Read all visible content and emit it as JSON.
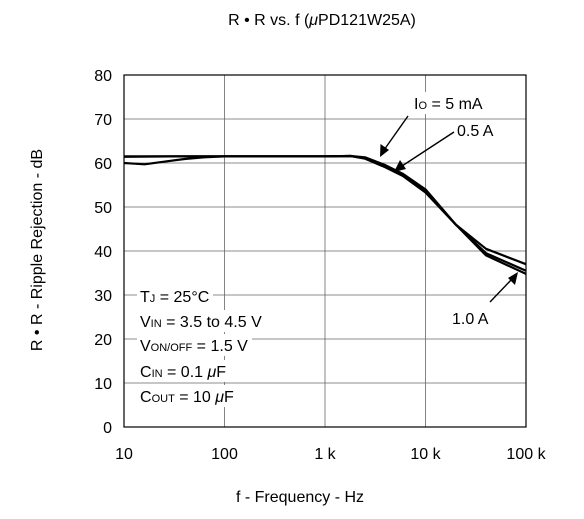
{
  "chart_data": {
    "type": "line",
    "title_prefix": "R • R vs. f (",
    "title_mu": "μ",
    "title_suffix": "PD121W25A)",
    "xlabel": "f - Frequency - Hz",
    "ylabel": "R • R - Ripple Rejection - dB",
    "x_scale": "log",
    "xlim": [
      10,
      100000
    ],
    "ylim": [
      0,
      80
    ],
    "x_ticks": [
      10,
      100,
      1000,
      10000,
      100000
    ],
    "x_tick_labels": [
      "10",
      "100",
      "1 k",
      "10 k",
      "100 k"
    ],
    "y_ticks": [
      0,
      10,
      20,
      30,
      40,
      50,
      60,
      70,
      80
    ],
    "y_tick_labels": [
      "0",
      "10",
      "20",
      "30",
      "40",
      "50",
      "60",
      "70",
      "80"
    ],
    "grid": true,
    "series": [
      {
        "name": "IO = 5 mA",
        "points": [
          [
            10,
            60.0
          ],
          [
            16,
            59.7
          ],
          [
            25,
            60.3
          ],
          [
            40,
            60.9
          ],
          [
            63,
            61.3
          ],
          [
            100,
            61.5
          ],
          [
            300,
            61.5
          ],
          [
            1000,
            61.5
          ],
          [
            1800,
            61.6
          ],
          [
            2500,
            61.3
          ],
          [
            4000,
            59.5
          ],
          [
            6000,
            57.5
          ],
          [
            10000,
            54.0
          ],
          [
            20000,
            46.0
          ],
          [
            40000,
            39.5
          ],
          [
            100000,
            35.5
          ]
        ]
      },
      {
        "name": "0.5 A",
        "points": [
          [
            10,
            61.4
          ],
          [
            30,
            61.5
          ],
          [
            100,
            61.5
          ],
          [
            300,
            61.5
          ],
          [
            1000,
            61.5
          ],
          [
            1800,
            61.6
          ],
          [
            2500,
            61.0
          ],
          [
            4000,
            59.2
          ],
          [
            6000,
            57.2
          ],
          [
            10000,
            53.6
          ],
          [
            20000,
            46.0
          ],
          [
            40000,
            39.0
          ],
          [
            100000,
            34.8
          ]
        ]
      },
      {
        "name": "1.0 A",
        "points": [
          [
            10,
            61.5
          ],
          [
            100,
            61.5
          ],
          [
            1000,
            61.5
          ],
          [
            1800,
            61.6
          ],
          [
            2500,
            61.0
          ],
          [
            4000,
            59.0
          ],
          [
            6000,
            57.0
          ],
          [
            10000,
            53.3
          ],
          [
            20000,
            46.0
          ],
          [
            40000,
            40.5
          ],
          [
            100000,
            37.0
          ]
        ]
      }
    ],
    "series_labels": {
      "io_prefix": "I",
      "io_sub": "O",
      "io_suffix": " = 5 mA",
      "half_amp": "0.5 A",
      "one_amp": "1.0 A"
    },
    "conditions": [
      {
        "main": "T",
        "sub": "J",
        "rest": " = 25°C"
      },
      {
        "main": "V",
        "sub": "IN",
        "rest": " = 3.5 to 4.5 V"
      },
      {
        "main": "V",
        "sub": "ON/OFF",
        "rest": " = 1.5 V"
      },
      {
        "main": "C",
        "sub": "IN",
        "rest": " = 0.1 ",
        "mu": "μ",
        "unit": "F"
      },
      {
        "main": "C",
        "sub": "OUT",
        "rest": " = 10 ",
        "mu": "μ",
        "unit": "F"
      }
    ]
  }
}
